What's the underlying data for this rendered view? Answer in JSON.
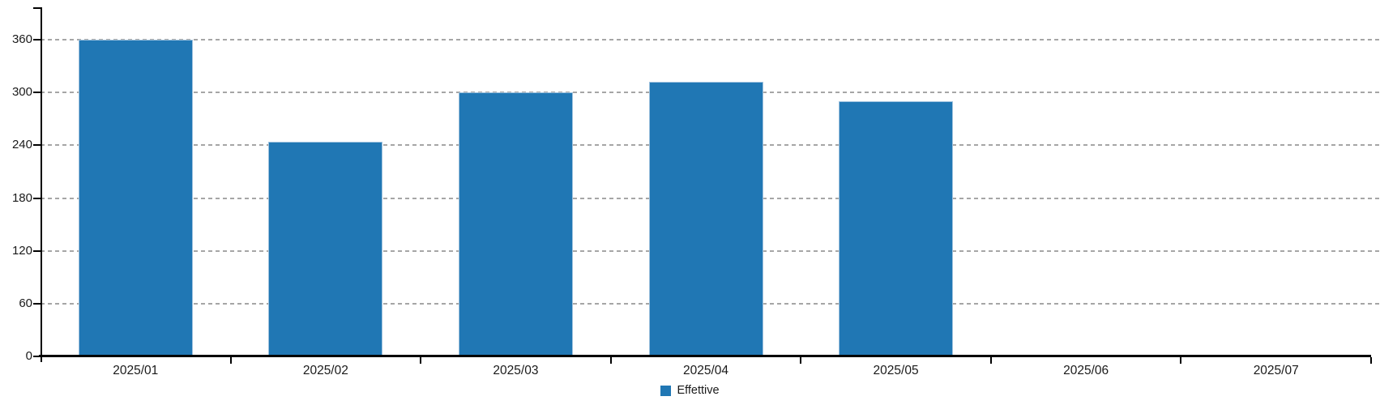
{
  "chart_data": {
    "type": "bar",
    "title": "",
    "xlabel": "",
    "ylabel": "",
    "categories": [
      "2025/01",
      "2025/02",
      "2025/03",
      "2025/04",
      "2025/05",
      "2025/06",
      "2025/07"
    ],
    "series": [
      {
        "name": "Effettive",
        "values": [
          360,
          244,
          300,
          312,
          290,
          0,
          0
        ],
        "color": "#2077b4"
      }
    ],
    "yticks": [
      0,
      60,
      120,
      180,
      240,
      300,
      360
    ],
    "ylim": [
      0,
      396
    ],
    "grid": true,
    "gridline_style": "dashed",
    "legend_position": "bottom"
  },
  "colors": {
    "bar_fill": "#2077b4",
    "bar_border": "#9fc2de",
    "gridline": "#a6a6a6",
    "axis": "#000000",
    "text": "#1a1a1a",
    "background": "#ffffff"
  }
}
